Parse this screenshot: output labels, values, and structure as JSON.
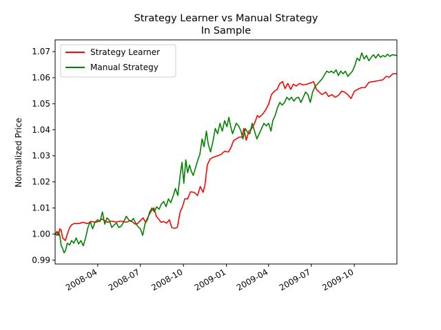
{
  "chart_data": {
    "type": "line",
    "title": "Strategy Learner vs Manual Strategy",
    "subtitle": "In Sample",
    "xlabel": "",
    "ylabel": "Normalized Price",
    "xlim": [
      "2008-01-01",
      "2009-12-31"
    ],
    "ylim": [
      0.9885,
      1.0745
    ],
    "grid": false,
    "legend_position": "top-left",
    "x_ticks": [
      "2008-04-01",
      "2008-07-01",
      "2008-10-01",
      "2009-01-01",
      "2009-04-01",
      "2009-07-01",
      "2009-10-01"
    ],
    "x_tick_labels": [
      "2008-04",
      "2008-07",
      "2008-10",
      "2009-01",
      "2009-04",
      "2009-07",
      "2009-10"
    ],
    "y_ticks": [
      0.99,
      1.0,
      1.01,
      1.02,
      1.03,
      1.04,
      1.05,
      1.06,
      1.07
    ],
    "y_tick_labels": [
      "0.99",
      "1.00",
      "1.01",
      "1.02",
      "1.03",
      "1.04",
      "1.05",
      "1.06",
      "1.07"
    ],
    "series": [
      {
        "name": "Strategy Learner",
        "color": "#ff0000",
        "points": [
          [
            "2008-01-02",
            1.0
          ],
          [
            "2008-01-05",
            1.001
          ],
          [
            "2008-01-08",
            0.9995
          ],
          [
            "2008-01-11",
            1.002
          ],
          [
            "2008-01-14",
            1.0015
          ],
          [
            "2008-01-17",
            0.9985
          ],
          [
            "2008-01-20",
            0.998
          ],
          [
            "2008-01-23",
            0.9975
          ],
          [
            "2008-01-27",
            1.0
          ],
          [
            "2008-02-01",
            1.0025
          ],
          [
            "2008-02-05",
            1.0035
          ],
          [
            "2008-02-10",
            1.004
          ],
          [
            "2008-02-20",
            1.004
          ],
          [
            "2008-03-01",
            1.0045
          ],
          [
            "2008-03-10",
            1.004
          ],
          [
            "2008-03-18",
            1.0048
          ],
          [
            "2008-03-28",
            1.0045
          ],
          [
            "2008-04-05",
            1.005
          ],
          [
            "2008-04-10",
            1.0058
          ],
          [
            "2008-04-15",
            1.0052
          ],
          [
            "2008-04-22",
            1.0045
          ],
          [
            "2008-05-01",
            1.005
          ],
          [
            "2008-05-10",
            1.0046
          ],
          [
            "2008-05-20",
            1.005
          ],
          [
            "2008-06-01",
            1.0045
          ],
          [
            "2008-06-10",
            1.0052
          ],
          [
            "2008-06-20",
            1.0038
          ],
          [
            "2008-06-25",
            1.004
          ],
          [
            "2008-07-01",
            1.0052
          ],
          [
            "2008-07-07",
            1.0062
          ],
          [
            "2008-07-12",
            1.0045
          ],
          [
            "2008-07-18",
            1.0068
          ],
          [
            "2008-07-24",
            1.0088
          ],
          [
            "2008-07-30",
            1.01
          ],
          [
            "2008-08-04",
            1.0068
          ],
          [
            "2008-08-08",
            1.006
          ],
          [
            "2008-08-14",
            1.0045
          ],
          [
            "2008-08-20",
            1.0048
          ],
          [
            "2008-08-26",
            1.0042
          ],
          [
            "2008-09-01",
            1.0055
          ],
          [
            "2008-09-06",
            1.0025
          ],
          [
            "2008-09-12",
            1.0022
          ],
          [
            "2008-09-18",
            1.0025
          ],
          [
            "2008-09-24",
            1.0085
          ],
          [
            "2008-09-29",
            1.0105
          ],
          [
            "2008-10-04",
            1.0135
          ],
          [
            "2008-10-10",
            1.0135
          ],
          [
            "2008-10-16",
            1.0162
          ],
          [
            "2008-10-24",
            1.016
          ],
          [
            "2008-10-31",
            1.0148
          ],
          [
            "2008-11-06",
            1.0182
          ],
          [
            "2008-11-12",
            1.016
          ],
          [
            "2008-11-16",
            1.0188
          ],
          [
            "2008-11-21",
            1.0265
          ],
          [
            "2008-11-27",
            1.0288
          ],
          [
            "2008-12-04",
            1.0295
          ],
          [
            "2008-12-12",
            1.03
          ],
          [
            "2008-12-20",
            1.0305
          ],
          [
            "2008-12-28",
            1.0318
          ],
          [
            "2009-01-05",
            1.0315
          ],
          [
            "2009-01-10",
            1.033
          ],
          [
            "2009-01-16",
            1.0358
          ],
          [
            "2009-01-22",
            1.0365
          ],
          [
            "2009-01-28",
            1.0372
          ],
          [
            "2009-02-03",
            1.0372
          ],
          [
            "2009-02-07",
            1.0405
          ],
          [
            "2009-02-12",
            1.036
          ],
          [
            "2009-02-18",
            1.0395
          ],
          [
            "2009-02-24",
            1.0405
          ],
          [
            "2009-03-02",
            1.0425
          ],
          [
            "2009-03-08",
            1.0455
          ],
          [
            "2009-03-12",
            1.0448
          ],
          [
            "2009-03-20",
            1.0462
          ],
          [
            "2009-03-26",
            1.0478
          ],
          [
            "2009-04-01",
            1.0498
          ],
          [
            "2009-04-07",
            1.0535
          ],
          [
            "2009-04-13",
            1.0548
          ],
          [
            "2009-04-19",
            1.0555
          ],
          [
            "2009-04-25",
            1.0578
          ],
          [
            "2009-05-01",
            1.0585
          ],
          [
            "2009-05-06",
            1.0558
          ],
          [
            "2009-05-12",
            1.0578
          ],
          [
            "2009-05-18",
            1.0555
          ],
          [
            "2009-05-24",
            1.0575
          ],
          [
            "2009-05-30",
            1.0568
          ],
          [
            "2009-06-06",
            1.0578
          ],
          [
            "2009-06-14",
            1.0572
          ],
          [
            "2009-06-22",
            1.0575
          ],
          [
            "2009-06-30",
            1.058
          ],
          [
            "2009-07-06",
            1.0585
          ],
          [
            "2009-07-12",
            1.0555
          ],
          [
            "2009-07-18",
            1.0545
          ],
          [
            "2009-07-24",
            1.0535
          ],
          [
            "2009-08-01",
            1.0545
          ],
          [
            "2009-08-07",
            1.0528
          ],
          [
            "2009-08-14",
            1.0535
          ],
          [
            "2009-08-21",
            1.0525
          ],
          [
            "2009-08-28",
            1.0532
          ],
          [
            "2009-09-04",
            1.0548
          ],
          [
            "2009-09-10",
            1.0545
          ],
          [
            "2009-09-17",
            1.0535
          ],
          [
            "2009-09-24",
            1.052
          ],
          [
            "2009-10-01",
            1.0548
          ],
          [
            "2009-10-08",
            1.0555
          ],
          [
            "2009-10-16",
            1.0562
          ],
          [
            "2009-10-24",
            1.0562
          ],
          [
            "2009-11-01",
            1.0582
          ],
          [
            "2009-11-10",
            1.0585
          ],
          [
            "2009-11-20",
            1.0588
          ],
          [
            "2009-12-01",
            1.0592
          ],
          [
            "2009-12-08",
            1.0605
          ],
          [
            "2009-12-15",
            1.0602
          ],
          [
            "2009-12-22",
            1.0615
          ],
          [
            "2009-12-31",
            1.0615
          ]
        ]
      },
      {
        "name": "Manual Strategy",
        "color": "#008000",
        "points": [
          [
            "2008-01-02",
            1.0
          ],
          [
            "2008-01-05",
            0.9995
          ],
          [
            "2008-01-08",
            1.0008
          ],
          [
            "2008-01-11",
            0.9995
          ],
          [
            "2008-01-14",
            0.9955
          ],
          [
            "2008-01-17",
            0.9945
          ],
          [
            "2008-01-20",
            0.9928
          ],
          [
            "2008-01-23",
            0.9935
          ],
          [
            "2008-01-27",
            0.9965
          ],
          [
            "2008-02-01",
            0.9958
          ],
          [
            "2008-02-05",
            0.9975
          ],
          [
            "2008-02-10",
            0.9965
          ],
          [
            "2008-02-15",
            0.9985
          ],
          [
            "2008-02-20",
            0.9962
          ],
          [
            "2008-02-25",
            0.9975
          ],
          [
            "2008-03-01",
            0.9955
          ],
          [
            "2008-03-06",
            0.9985
          ],
          [
            "2008-03-11",
            1.0025
          ],
          [
            "2008-03-16",
            1.0048
          ],
          [
            "2008-03-21",
            1.002
          ],
          [
            "2008-03-26",
            1.0045
          ],
          [
            "2008-04-01",
            1.0055
          ],
          [
            "2008-04-06",
            1.0048
          ],
          [
            "2008-04-11",
            1.0085
          ],
          [
            "2008-04-16",
            1.0038
          ],
          [
            "2008-04-21",
            1.0062
          ],
          [
            "2008-04-26",
            1.0052
          ],
          [
            "2008-05-01",
            1.0025
          ],
          [
            "2008-05-06",
            1.0035
          ],
          [
            "2008-05-11",
            1.0042
          ],
          [
            "2008-05-16",
            1.0025
          ],
          [
            "2008-05-21",
            1.003
          ],
          [
            "2008-05-26",
            1.0045
          ],
          [
            "2008-06-01",
            1.0068
          ],
          [
            "2008-06-06",
            1.0055
          ],
          [
            "2008-06-11",
            1.0048
          ],
          [
            "2008-06-16",
            1.006
          ],
          [
            "2008-06-21",
            1.0042
          ],
          [
            "2008-06-26",
            1.0028
          ],
          [
            "2008-07-01",
            1.002
          ],
          [
            "2008-07-06",
            0.9995
          ],
          [
            "2008-07-11",
            1.004
          ],
          [
            "2008-07-16",
            1.0055
          ],
          [
            "2008-07-21",
            1.0085
          ],
          [
            "2008-07-26",
            1.01
          ],
          [
            "2008-07-31",
            1.0085
          ],
          [
            "2008-08-05",
            1.0105
          ],
          [
            "2008-08-10",
            1.0095
          ],
          [
            "2008-08-15",
            1.0115
          ],
          [
            "2008-08-20",
            1.0125
          ],
          [
            "2008-08-25",
            1.0105
          ],
          [
            "2008-08-30",
            1.0135
          ],
          [
            "2008-09-04",
            1.012
          ],
          [
            "2008-09-09",
            1.0145
          ],
          [
            "2008-09-14",
            1.0175
          ],
          [
            "2008-09-19",
            1.0148
          ],
          [
            "2008-09-24",
            1.0225
          ],
          [
            "2008-09-28",
            1.0275
          ],
          [
            "2008-10-02",
            1.0195
          ],
          [
            "2008-10-06",
            1.0285
          ],
          [
            "2008-10-10",
            1.0235
          ],
          [
            "2008-10-14",
            1.0265
          ],
          [
            "2008-10-18",
            1.024
          ],
          [
            "2008-10-22",
            1.0225
          ],
          [
            "2008-10-27",
            1.0255
          ],
          [
            "2008-11-01",
            1.0285
          ],
          [
            "2008-11-05",
            1.0305
          ],
          [
            "2008-11-10",
            1.0365
          ],
          [
            "2008-11-14",
            1.0335
          ],
          [
            "2008-11-19",
            1.0395
          ],
          [
            "2008-11-23",
            1.0345
          ],
          [
            "2008-11-28",
            1.0315
          ],
          [
            "2008-12-03",
            1.0355
          ],
          [
            "2008-12-08",
            1.0405
          ],
          [
            "2008-12-13",
            1.0385
          ],
          [
            "2008-12-18",
            1.0425
          ],
          [
            "2008-12-23",
            1.0395
          ],
          [
            "2008-12-28",
            1.0435
          ],
          [
            "2009-01-02",
            1.0412
          ],
          [
            "2009-01-06",
            1.0448
          ],
          [
            "2009-01-10",
            1.0412
          ],
          [
            "2009-01-14",
            1.0385
          ],
          [
            "2009-01-18",
            1.0405
          ],
          [
            "2009-01-22",
            1.0425
          ],
          [
            "2009-01-27",
            1.0415
          ],
          [
            "2009-02-01",
            1.0395
          ],
          [
            "2009-02-05",
            1.0365
          ],
          [
            "2009-02-10",
            1.0405
          ],
          [
            "2009-02-15",
            1.039
          ],
          [
            "2009-02-20",
            1.0385
          ],
          [
            "2009-02-25",
            1.0425
          ],
          [
            "2009-03-02",
            1.0395
          ],
          [
            "2009-03-07",
            1.0365
          ],
          [
            "2009-03-12",
            1.0385
          ],
          [
            "2009-03-17",
            1.0405
          ],
          [
            "2009-03-22",
            1.0425
          ],
          [
            "2009-03-27",
            1.0415
          ],
          [
            "2009-04-01",
            1.0425
          ],
          [
            "2009-04-06",
            1.0395
          ],
          [
            "2009-04-10",
            1.0435
          ],
          [
            "2009-04-15",
            1.0455
          ],
          [
            "2009-04-20",
            1.0485
          ],
          [
            "2009-04-25",
            1.0505
          ],
          [
            "2009-04-30",
            1.0495
          ],
          [
            "2009-05-05",
            1.0505
          ],
          [
            "2009-05-10",
            1.0525
          ],
          [
            "2009-05-15",
            1.0515
          ],
          [
            "2009-05-20",
            1.0525
          ],
          [
            "2009-05-25",
            1.051
          ],
          [
            "2009-05-30",
            1.0522
          ],
          [
            "2009-06-04",
            1.0525
          ],
          [
            "2009-06-09",
            1.0505
          ],
          [
            "2009-06-14",
            1.0525
          ],
          [
            "2009-06-19",
            1.0545
          ],
          [
            "2009-06-24",
            1.0535
          ],
          [
            "2009-06-29",
            1.0505
          ],
          [
            "2009-07-04",
            1.0545
          ],
          [
            "2009-07-09",
            1.0565
          ],
          [
            "2009-07-14",
            1.0575
          ],
          [
            "2009-07-19",
            1.0585
          ],
          [
            "2009-07-24",
            1.0595
          ],
          [
            "2009-07-29",
            1.061
          ],
          [
            "2009-08-03",
            1.0625
          ],
          [
            "2009-08-08",
            1.062
          ],
          [
            "2009-08-13",
            1.0625
          ],
          [
            "2009-08-18",
            1.0618
          ],
          [
            "2009-08-23",
            1.063
          ],
          [
            "2009-08-28",
            1.0608
          ],
          [
            "2009-09-02",
            1.0625
          ],
          [
            "2009-09-07",
            1.0615
          ],
          [
            "2009-09-12",
            1.0625
          ],
          [
            "2009-09-17",
            1.0605
          ],
          [
            "2009-09-22",
            1.0615
          ],
          [
            "2009-09-27",
            1.0625
          ],
          [
            "2009-10-02",
            1.0645
          ],
          [
            "2009-10-07",
            1.0675
          ],
          [
            "2009-10-12",
            1.0665
          ],
          [
            "2009-10-17",
            1.0695
          ],
          [
            "2009-10-22",
            1.0672
          ],
          [
            "2009-10-27",
            1.0685
          ],
          [
            "2009-11-01",
            1.0665
          ],
          [
            "2009-11-06",
            1.0678
          ],
          [
            "2009-11-11",
            1.0688
          ],
          [
            "2009-11-16",
            1.0675
          ],
          [
            "2009-11-21",
            1.069
          ],
          [
            "2009-11-26",
            1.0678
          ],
          [
            "2009-12-01",
            1.0685
          ],
          [
            "2009-12-06",
            1.068
          ],
          [
            "2009-12-11",
            1.069
          ],
          [
            "2009-12-16",
            1.0682
          ],
          [
            "2009-12-21",
            1.0688
          ],
          [
            "2009-12-31",
            1.0685
          ]
        ]
      }
    ]
  }
}
